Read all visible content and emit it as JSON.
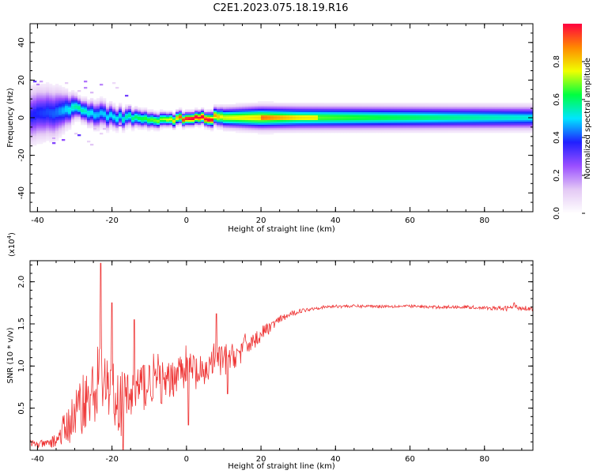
{
  "title": "C2E1.2023.075.18.19.R16",
  "chart_data": [
    {
      "type": "heatmap",
      "title": "",
      "xlabel": "Height of straight line (km)",
      "ylabel": "Frequency (Hz)",
      "xlim": [
        -42,
        93
      ],
      "ylim": [
        -50,
        50
      ],
      "xticks": [
        -40,
        -20,
        0,
        20,
        40,
        60,
        80
      ],
      "yticks": [
        -40,
        -20,
        0,
        20,
        40
      ],
      "colormap": [
        "#ffffff",
        "#e4c9f5",
        "#9a4fff",
        "#2020ff",
        "#00e5ff",
        "#00ff40",
        "#f0ff00",
        "#ff8800",
        "#ff0040"
      ],
      "colorbar": {
        "label": "Normalized spectral amplitude",
        "range": [
          0.0,
          1.0
        ],
        "ticks": [
          "0.0",
          "0.2",
          "0.4",
          "0.6",
          "0.8"
        ]
      },
      "ridge": [
        {
          "x": -42,
          "freq": 2,
          "spread": 8,
          "amp": 0.35
        },
        {
          "x": -35,
          "freq": 3,
          "spread": 7,
          "amp": 0.4
        },
        {
          "x": -29,
          "freq": 5,
          "spread": 3,
          "amp": 0.55
        },
        {
          "x": -24,
          "freq": 2,
          "spread": 4,
          "amp": 0.45
        },
        {
          "x": -18,
          "freq": 0,
          "spread": 3,
          "amp": 0.5
        },
        {
          "x": -12,
          "freq": 0,
          "spread": 2.5,
          "amp": 0.6
        },
        {
          "x": -5,
          "freq": -1,
          "spread": 2,
          "amp": 0.7
        },
        {
          "x": 0,
          "freq": 0,
          "spread": 2,
          "amp": 0.85
        },
        {
          "x": 5,
          "freq": 0,
          "spread": 2,
          "amp": 0.95
        },
        {
          "x": 10,
          "freq": 0,
          "spread": 3,
          "amp": 0.7
        },
        {
          "x": 20,
          "freq": 0,
          "spread": 3.5,
          "amp": 0.75
        },
        {
          "x": 30,
          "freq": 0,
          "spread": 3.5,
          "amp": 0.65
        },
        {
          "x": 50,
          "freq": 0,
          "spread": 3.5,
          "amp": 0.6
        },
        {
          "x": 70,
          "freq": 0,
          "spread": 3.5,
          "amp": 0.55
        },
        {
          "x": 93,
          "freq": 0,
          "spread": 3.5,
          "amp": 0.5
        }
      ]
    },
    {
      "type": "line",
      "title": "",
      "xlabel": "Height of straight line (km)",
      "ylabel": "SNR (10 * v/v)",
      "yscale_label": "(x10",
      "yscale_exp": "4",
      "yscale_close": ")",
      "xlim": [
        -42,
        93
      ],
      "ylim": [
        0,
        2.25
      ],
      "xticks": [
        -40,
        -20,
        0,
        20,
        40,
        60,
        80
      ],
      "yticks": [
        "0.5",
        "1.0",
        "1.5",
        "2.0"
      ],
      "series": [
        {
          "color": "#ee3333",
          "x": [
            -42,
            -38,
            -35,
            -32,
            -30,
            -28,
            -26,
            -24,
            -23,
            -22,
            -20,
            -18,
            -16,
            -14,
            -12,
            -10,
            -8,
            -6,
            -4,
            -2,
            0,
            2,
            4,
            6,
            8,
            10,
            12,
            14,
            16,
            18,
            20,
            22,
            25,
            30,
            35,
            40,
            45,
            50,
            55,
            60,
            65,
            70,
            75,
            80,
            85,
            88,
            90,
            93
          ],
          "mean": [
            0.08,
            0.07,
            0.12,
            0.28,
            0.42,
            0.55,
            0.62,
            0.75,
            0.8,
            0.72,
            0.65,
            0.55,
            0.6,
            0.7,
            0.75,
            0.8,
            0.85,
            0.75,
            0.85,
            0.95,
            1.0,
            0.95,
            0.85,
            1.0,
            1.1,
            1.05,
            1.1,
            1.15,
            1.25,
            1.3,
            1.38,
            1.45,
            1.55,
            1.65,
            1.69,
            1.71,
            1.71,
            1.71,
            1.71,
            1.71,
            1.7,
            1.7,
            1.7,
            1.69,
            1.68,
            1.7,
            1.69,
            1.68
          ],
          "noise": [
            0.05,
            0.05,
            0.1,
            0.25,
            0.3,
            0.38,
            0.4,
            0.55,
            0.6,
            0.5,
            0.45,
            0.42,
            0.4,
            0.38,
            0.38,
            0.35,
            0.32,
            0.3,
            0.28,
            0.26,
            0.25,
            0.3,
            0.25,
            0.22,
            0.2,
            0.22,
            0.2,
            0.18,
            0.15,
            0.12,
            0.1,
            0.08,
            0.05,
            0.03,
            0.02,
            0.02,
            0.02,
            0.02,
            0.02,
            0.02,
            0.02,
            0.02,
            0.02,
            0.02,
            0.03,
            0.04,
            0.03,
            0.03
          ],
          "features": [
            {
              "x": -23,
              "y": 2.22
            },
            {
              "x": -20,
              "y": 1.75
            },
            {
              "x": -17,
              "y": 0.0
            },
            {
              "x": -14,
              "y": 1.55
            },
            {
              "x": 0.5,
              "y": 0.3
            },
            {
              "x": 8,
              "y": 1.62
            },
            {
              "x": 11,
              "y": 0.67
            },
            {
              "x": 88,
              "y": 1.75
            }
          ]
        }
      ]
    }
  ]
}
